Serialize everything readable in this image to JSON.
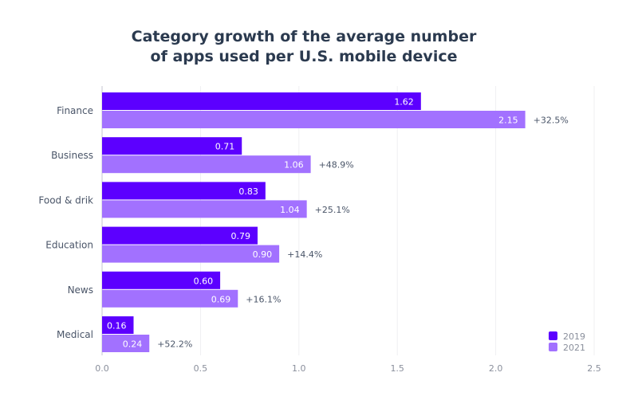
{
  "chart_data": {
    "type": "bar",
    "orientation": "horizontal",
    "title_lines": [
      "Category growth of the average number",
      "of apps used per U.S. mobile device"
    ],
    "categories": [
      "Finance",
      "Business",
      "Food & drik",
      "Education",
      "News",
      "Medical"
    ],
    "series": [
      {
        "name": "2019",
        "values": [
          1.62,
          0.71,
          0.83,
          0.79,
          0.6,
          0.16
        ],
        "labels": [
          "1.62",
          "0.71",
          "0.83",
          "0.79",
          "0.60",
          "0.16"
        ],
        "color": "#5c00ff"
      },
      {
        "name": "2021",
        "values": [
          2.15,
          1.06,
          1.04,
          0.9,
          0.69,
          0.24
        ],
        "labels": [
          "2.15",
          "1.06",
          "1.04",
          "0.90",
          "0.69",
          "0.24"
        ],
        "color": "#a271ff"
      }
    ],
    "growth_labels": [
      "+32.5%",
      "+48.9%",
      "+25.1%",
      "+14.4%",
      "+16.1%",
      "+52.2%"
    ],
    "xlim": [
      0,
      2.5
    ],
    "xticks": [
      "0.0",
      "0.5",
      "1.0",
      "1.5",
      "2.0",
      "2.5"
    ],
    "grid": true,
    "legend": "bottom-right"
  }
}
